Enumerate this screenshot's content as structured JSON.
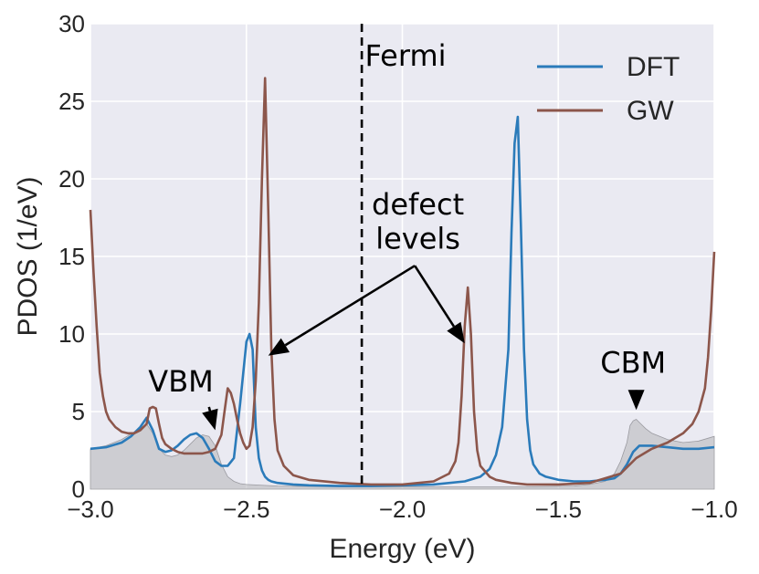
{
  "chart_data": {
    "type": "line",
    "xlabel": "Energy (eV)",
    "ylabel": "PDOS (1/eV)",
    "xlim": [
      -3.0,
      -1.0
    ],
    "ylim": [
      0,
      30
    ],
    "x_ticks": [
      -3.0,
      -2.5,
      -2.0,
      -1.5,
      -1.0
    ],
    "x_tick_labels": [
      "−3.0",
      "−2.5",
      "−2.0",
      "−1.5",
      "−1.0"
    ],
    "y_ticks": [
      0,
      5,
      10,
      15,
      20,
      25,
      30
    ],
    "y_tick_labels": [
      "0",
      "5",
      "10",
      "15",
      "20",
      "25",
      "30"
    ],
    "grid": true,
    "legend_position": "top-right",
    "fermi_level": -2.13,
    "fermi_label": "Fermi",
    "colors": {
      "DFT": "#2b7bba",
      "GW": "#8c564b",
      "shade": "#b4b4b8",
      "background": "#eaeaf2",
      "grid": "#ffffff"
    },
    "shaded_background": {
      "name": "total DOS (shaded)",
      "x": [
        -3.0,
        -2.95,
        -2.9,
        -2.85,
        -2.82,
        -2.8,
        -2.78,
        -2.76,
        -2.74,
        -2.72,
        -2.7,
        -2.68,
        -2.66,
        -2.64,
        -2.62,
        -2.6,
        -2.58,
        -2.56,
        -2.54,
        -2.52,
        -2.5,
        -2.4,
        -2.2,
        -2.0,
        -1.8,
        -1.6,
        -1.45,
        -1.4,
        -1.35,
        -1.32,
        -1.3,
        -1.28,
        -1.27,
        -1.26,
        -1.25,
        -1.24,
        -1.22,
        -1.2,
        -1.15,
        -1.1,
        -1.05,
        -1.0
      ],
      "y": [
        2.6,
        2.8,
        3.2,
        3.8,
        4.2,
        3.6,
        2.6,
        2.2,
        2.1,
        2.2,
        2.5,
        2.9,
        3.3,
        3.5,
        3.4,
        2.8,
        1.6,
        0.8,
        0.5,
        0.35,
        0.3,
        0.2,
        0.15,
        0.15,
        0.15,
        0.15,
        0.2,
        0.3,
        0.5,
        1.0,
        1.8,
        3.0,
        4.1,
        4.4,
        4.5,
        4.3,
        3.9,
        3.6,
        3.2,
        3.0,
        3.1,
        3.4
      ]
    },
    "series": [
      {
        "name": "DFT",
        "x": [
          -3.0,
          -2.95,
          -2.9,
          -2.87,
          -2.84,
          -2.82,
          -2.8,
          -2.78,
          -2.76,
          -2.74,
          -2.72,
          -2.7,
          -2.68,
          -2.66,
          -2.64,
          -2.62,
          -2.6,
          -2.58,
          -2.56,
          -2.54,
          -2.52,
          -2.5,
          -2.49,
          -2.48,
          -2.47,
          -2.46,
          -2.45,
          -2.44,
          -2.43,
          -2.42,
          -2.4,
          -2.35,
          -2.3,
          -2.2,
          -2.1,
          -2.0,
          -1.9,
          -1.8,
          -1.75,
          -1.72,
          -1.7,
          -1.68,
          -1.66,
          -1.65,
          -1.64,
          -1.63,
          -1.62,
          -1.61,
          -1.6,
          -1.59,
          -1.58,
          -1.56,
          -1.54,
          -1.5,
          -1.45,
          -1.4,
          -1.35,
          -1.32,
          -1.3,
          -1.28,
          -1.26,
          -1.24,
          -1.22,
          -1.2,
          -1.15,
          -1.1,
          -1.05,
          -1.0
        ],
        "y": [
          2.6,
          2.7,
          3.0,
          3.4,
          4.0,
          4.6,
          3.8,
          2.6,
          2.4,
          2.5,
          2.8,
          3.2,
          3.5,
          3.6,
          3.3,
          2.6,
          1.8,
          1.5,
          1.5,
          2.0,
          5.5,
          9.5,
          10.0,
          9.0,
          4.0,
          2.0,
          1.2,
          0.8,
          0.6,
          0.5,
          0.4,
          0.3,
          0.25,
          0.2,
          0.2,
          0.25,
          0.3,
          0.5,
          0.8,
          1.3,
          2.2,
          4.0,
          9.0,
          16.5,
          22.3,
          24.0,
          17.0,
          9.0,
          4.5,
          2.5,
          1.6,
          1.0,
          0.8,
          0.6,
          0.5,
          0.5,
          0.6,
          0.7,
          1.0,
          1.6,
          2.4,
          2.8,
          2.8,
          2.8,
          2.7,
          2.6,
          2.6,
          2.7
        ]
      },
      {
        "name": "GW",
        "x": [
          -3.0,
          -2.99,
          -2.98,
          -2.97,
          -2.96,
          -2.95,
          -2.94,
          -2.92,
          -2.9,
          -2.88,
          -2.86,
          -2.84,
          -2.82,
          -2.81,
          -2.8,
          -2.79,
          -2.78,
          -2.77,
          -2.76,
          -2.74,
          -2.72,
          -2.7,
          -2.68,
          -2.66,
          -2.64,
          -2.62,
          -2.6,
          -2.58,
          -2.57,
          -2.56,
          -2.55,
          -2.54,
          -2.53,
          -2.52,
          -2.51,
          -2.5,
          -2.49,
          -2.48,
          -2.47,
          -2.46,
          -2.45,
          -2.44,
          -2.43,
          -2.42,
          -2.41,
          -2.4,
          -2.38,
          -2.35,
          -2.3,
          -2.2,
          -2.1,
          -2.0,
          -1.9,
          -1.85,
          -1.83,
          -1.82,
          -1.81,
          -1.8,
          -1.79,
          -1.78,
          -1.77,
          -1.76,
          -1.75,
          -1.72,
          -1.7,
          -1.65,
          -1.6,
          -1.5,
          -1.4,
          -1.3,
          -1.25,
          -1.2,
          -1.15,
          -1.1,
          -1.07,
          -1.05,
          -1.03,
          -1.02,
          -1.01,
          -1.0
        ],
        "y": [
          18.0,
          14.0,
          10.5,
          7.5,
          6.0,
          5.0,
          4.5,
          4.0,
          3.7,
          3.6,
          3.6,
          3.8,
          4.2,
          5.2,
          5.3,
          5.2,
          4.2,
          3.3,
          2.9,
          2.6,
          2.4,
          2.3,
          2.3,
          2.3,
          2.3,
          2.4,
          2.6,
          3.5,
          5.0,
          6.5,
          6.2,
          5.5,
          4.5,
          3.6,
          3.0,
          2.6,
          2.8,
          4.0,
          7.0,
          12.0,
          20.0,
          26.5,
          18.0,
          9.0,
          4.5,
          2.5,
          1.5,
          0.9,
          0.6,
          0.4,
          0.3,
          0.3,
          0.5,
          1.0,
          1.8,
          3.0,
          6.0,
          10.5,
          13.0,
          10.0,
          5.0,
          2.5,
          1.5,
          0.8,
          0.6,
          0.4,
          0.3,
          0.3,
          0.4,
          1.0,
          2.0,
          2.6,
          3.0,
          3.6,
          4.2,
          5.0,
          6.5,
          8.5,
          11.5,
          15.3
        ]
      }
    ],
    "annotations": [
      {
        "text": "Fermi",
        "x": -2.12,
        "y": 27.3
      },
      {
        "text": "defect",
        "x": -1.95,
        "y": 17.7
      },
      {
        "text": "levels",
        "x": -1.95,
        "y": 15.5
      },
      {
        "text": "VBM",
        "x": -2.71,
        "y": 6.3
      },
      {
        "text": "CBM",
        "x": -1.26,
        "y": 7.5
      }
    ],
    "arrows": [
      {
        "from": [
          -1.96,
          14.4
        ],
        "to": [
          -2.43,
          8.6
        ]
      },
      {
        "from": [
          -1.96,
          14.4
        ],
        "to": [
          -1.8,
          9.4
        ]
      },
      {
        "from": [
          -2.62,
          5.3
        ],
        "to": [
          -2.6,
          3.8
        ]
      },
      {
        "from": [
          -1.25,
          6.4
        ],
        "to": [
          -1.25,
          5.1
        ]
      }
    ]
  }
}
